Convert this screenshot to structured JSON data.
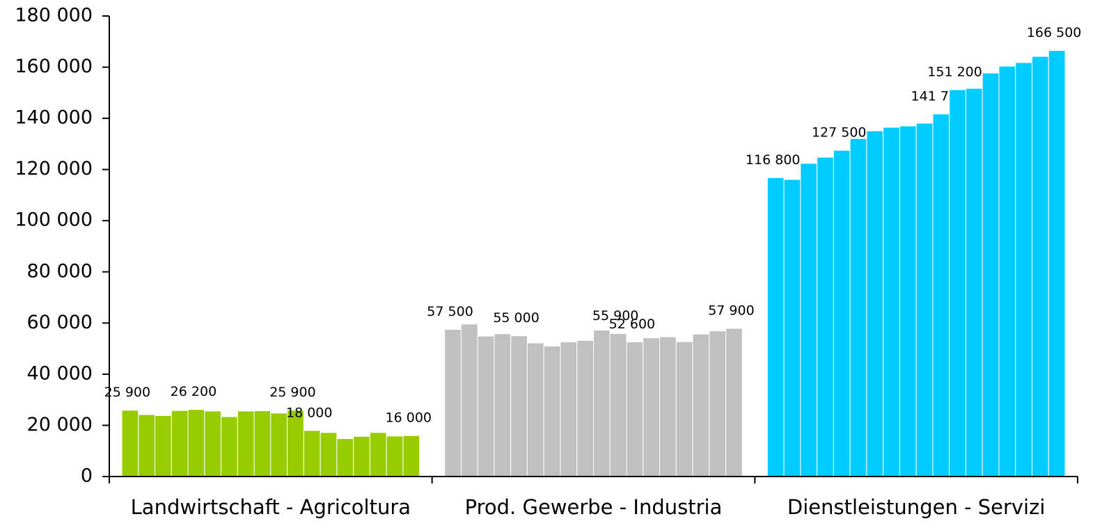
{
  "chart_data": {
    "type": "grouped-bar",
    "groups": [
      {
        "name": "Landwirtschaft - Agricoltura",
        "color": "#99cc00",
        "values": [
          25900,
          24200,
          23800,
          25800,
          26200,
          25600,
          23400,
          25600,
          25700,
          24800,
          25900,
          18000,
          17200,
          14800,
          15700,
          17200,
          15800,
          16000
        ],
        "value_labels": [
          "25 900",
          null,
          null,
          null,
          "26 200",
          null,
          null,
          null,
          null,
          null,
          "25 900",
          "18 000",
          null,
          null,
          null,
          null,
          null,
          "16 000"
        ]
      },
      {
        "name": "Prod. Gewerbe - Industria",
        "color": "#c0c0c0",
        "values": [
          57500,
          59600,
          54900,
          55800,
          55000,
          52200,
          51000,
          52600,
          53200,
          57200,
          55900,
          52600,
          54200,
          54600,
          52700,
          55700,
          56900,
          57900
        ],
        "value_labels": [
          "57 500",
          null,
          null,
          null,
          "55 000",
          null,
          null,
          null,
          null,
          null,
          "55 900",
          "52 600",
          null,
          null,
          null,
          null,
          null,
          "57 900"
        ]
      },
      {
        "name": "Dienstleistungen - Servizi",
        "color": "#00ccff",
        "values": [
          116800,
          116100,
          122400,
          124800,
          127500,
          132100,
          135100,
          136500,
          137000,
          138100,
          141700,
          151200,
          151700,
          157700,
          160400,
          161800,
          164200,
          166500
        ],
        "value_labels": [
          "116 800",
          null,
          null,
          null,
          "127 500",
          null,
          null,
          null,
          null,
          null,
          "141 700",
          "151 200",
          null,
          null,
          null,
          null,
          null,
          "166 500"
        ]
      }
    ],
    "ylim": [
      0,
      180000
    ],
    "yticks": [
      0,
      {
        "value": 20000,
        "label": "20 000"
      },
      {
        "value": 40000,
        "label": "40 000"
      },
      {
        "value": 60000,
        "label": "60 000"
      },
      {
        "value": 80000,
        "label": "80 000"
      },
      {
        "value": 100000,
        "label": "100 000"
      },
      {
        "value": 120000,
        "label": "120 000"
      },
      {
        "value": 140000,
        "label": "140 000"
      },
      {
        "value": 160000,
        "label": "160 000"
      },
      {
        "value": 180000,
        "label": "180 000"
      }
    ]
  }
}
